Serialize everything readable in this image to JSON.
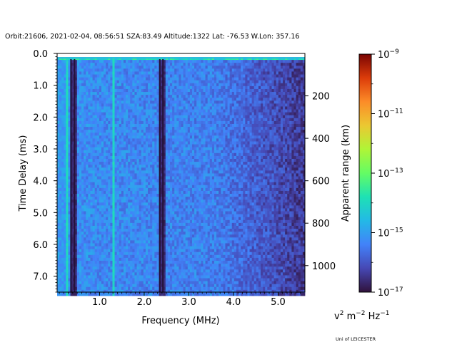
{
  "chart_data": {
    "type": "heatmap",
    "title": "Orbit:21606, 2021-02-04, 08:56:51 SZA:83.49 Altitude:1322 Lat: -76.53 W.Lon: 357.16",
    "xlabel": "Frequency (MHz)",
    "ylabel": "Time Delay (ms)",
    "y2label": "Apparent range (km)",
    "xlim": [
      0.05,
      5.6
    ],
    "ylim": [
      7.5,
      0.0
    ],
    "y2lim": [
      0,
      1125
    ],
    "x_ticks": [
      1.0,
      2.0,
      3.0,
      4.0,
      5.0
    ],
    "x_tick_labels": [
      "1.0",
      "2.0",
      "3.0",
      "4.0",
      "5.0"
    ],
    "y_ticks": [
      0.0,
      1.0,
      2.0,
      3.0,
      4.0,
      5.0,
      6.0,
      7.0
    ],
    "y_tick_labels": [
      "0.0",
      "1.0",
      "2.0",
      "3.0",
      "4.0",
      "5.0",
      "6.0",
      "7.0"
    ],
    "y2_ticks": [
      200,
      400,
      600,
      800,
      1000
    ],
    "y2_tick_labels": [
      "200",
      "400",
      "600",
      "800",
      "1000"
    ],
    "colorbar": {
      "colormap": "turbo",
      "scale": "log",
      "range": [
        -17,
        -9
      ],
      "ticks": [
        -9,
        -11,
        -13,
        -15,
        -17
      ],
      "tick_bases": [
        "10",
        "10",
        "10",
        "10",
        "10"
      ],
      "tick_exps": [
        "−9",
        "−11",
        "−13",
        "−15",
        "−17"
      ],
      "unit": {
        "v": "v",
        "sup1": "2",
        "m": " m",
        "sup2": "−2",
        "hz": " Hz",
        "sup3": "−1"
      }
    },
    "bright_lines_mhz": [
      0.28,
      1.32
    ],
    "dark_lines_mhz": [
      0.36,
      0.44,
      2.35,
      2.42
    ],
    "colors": {
      "background": "#30123b",
      "accent": "#3b8efc",
      "line": "#25d8be"
    }
  },
  "footer": {
    "credit": "Uni of LEICESTER"
  }
}
